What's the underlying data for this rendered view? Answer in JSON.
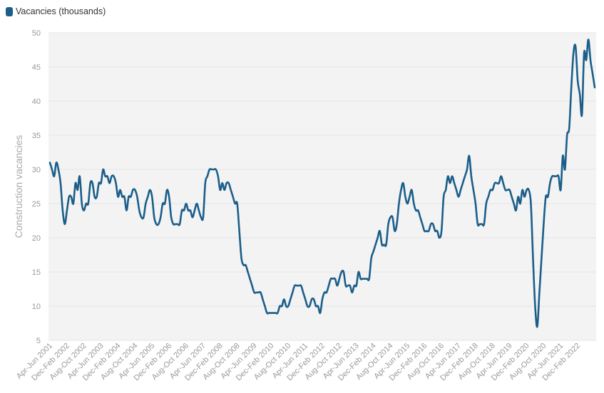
{
  "legend": {
    "label": "Vacancies (thousands)",
    "color": "#1b5e8a"
  },
  "chart_data": {
    "type": "line",
    "title": "",
    "xlabel": "",
    "ylabel": "Construction vacancies",
    "ylim": [
      5,
      50
    ],
    "yticks": [
      5,
      10,
      15,
      20,
      25,
      30,
      35,
      40,
      45,
      50
    ],
    "grid": true,
    "legend_position": "top-left",
    "xtick_labels": [
      "Apr-Jun 2001",
      "Dec-Feb 2002",
      "Aug-Oct 2002",
      "Apr-Jun 2003",
      "Dec-Feb 2004",
      "Aug-Oct 2004",
      "Apr-Jun 2005",
      "Dec-Feb 2006",
      "Aug-Oct 2006",
      "Apr-Jun 2007",
      "Dec-Feb 2008",
      "Aug-Oct 2008",
      "Apr-Jun 2009",
      "Dec-Feb 2010",
      "Aug-Oct 2010",
      "Apr-Jun 2011",
      "Dec-Feb 2012",
      "Aug-Oct 2012",
      "Apr-Jun 2013",
      "Dec-Feb 2014",
      "Aug-Oct 2014",
      "Apr-Jun 2015",
      "Dec-Feb 2016",
      "Aug-Oct 2016",
      "Apr-Jun 2017",
      "Dec-Feb 2018",
      "Aug-Oct 2018",
      "Apr-Jun 2019",
      "Dec-Feb 2020",
      "Aug-Oct 2020",
      "Apr-Jun 2021",
      "Dec-Feb 2022"
    ],
    "series": [
      {
        "name": "Vacancies (thousands)",
        "color": "#1b5e8a",
        "values": [
          31,
          30,
          29,
          31,
          30,
          28,
          24,
          22,
          24,
          26,
          26,
          25,
          28,
          27,
          29,
          25,
          24,
          25,
          25,
          28,
          28,
          26,
          26,
          28,
          28,
          30,
          29,
          29,
          28,
          29,
          29,
          28,
          26,
          27,
          26,
          26,
          24,
          26,
          26,
          27,
          27,
          26,
          24,
          23,
          23,
          25,
          26,
          27,
          26,
          23,
          22,
          22,
          23,
          25,
          25,
          27,
          26,
          23,
          22,
          22,
          22,
          22,
          24,
          24,
          25,
          24,
          24,
          23,
          24,
          25,
          24,
          23,
          23,
          28,
          29,
          30,
          30,
          30,
          30,
          29,
          27,
          28,
          27,
          28,
          28,
          27,
          26,
          25,
          25,
          21,
          17,
          16,
          16,
          15,
          14,
          13,
          12,
          12,
          12,
          12,
          11,
          10,
          9,
          9,
          9,
          9,
          9,
          9,
          10,
          10,
          11,
          10,
          10,
          11,
          12,
          13,
          13,
          13,
          13,
          12,
          11,
          10,
          10,
          11,
          11,
          10,
          10,
          9,
          11,
          12,
          12,
          13,
          14,
          14,
          14,
          13,
          14,
          15,
          15,
          13,
          13,
          13,
          12,
          13,
          13,
          15,
          14,
          14,
          14,
          14,
          14,
          17,
          18,
          19,
          20,
          21,
          19,
          19,
          19,
          22,
          23,
          23,
          21,
          22,
          25,
          27,
          28,
          26,
          25,
          26,
          27,
          25,
          24,
          24,
          23,
          22,
          21,
          21,
          21,
          22,
          22,
          21,
          21,
          20,
          21,
          26,
          27,
          29,
          28,
          29,
          28,
          27,
          26,
          27,
          28,
          29,
          30,
          32,
          29,
          27,
          25,
          22,
          22,
          22,
          22,
          25,
          26,
          27,
          27,
          28,
          28,
          28,
          29,
          28,
          27,
          27,
          27,
          26,
          25,
          24,
          26,
          25,
          27,
          26,
          27,
          27,
          25,
          17,
          10,
          7,
          12,
          17,
          22,
          26,
          26,
          28,
          29,
          29,
          29,
          29,
          27,
          32,
          30,
          35,
          36,
          42,
          47,
          48,
          43,
          41,
          38,
          47,
          46,
          49,
          46,
          44,
          42
        ]
      }
    ]
  }
}
